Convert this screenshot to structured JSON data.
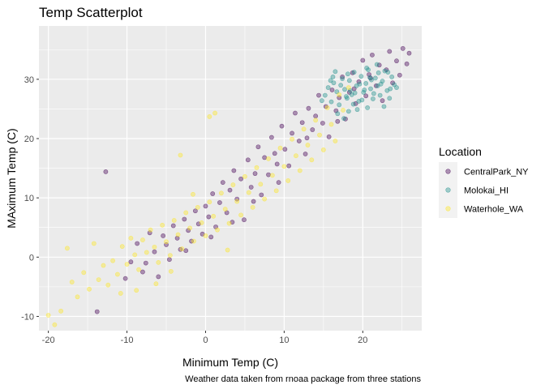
{
  "chart_data": {
    "type": "scatter",
    "title": "Temp Scatterplot",
    "xlabel": "Minimum Temp (C)",
    "ylabel": "MAximum Temp (C)",
    "caption": "Weather data taken from rnoaa package from three stations",
    "xlim": [
      -21.2,
      27.5
    ],
    "ylim": [
      -12.4,
      39.0
    ],
    "x_ticks": [
      -20,
      -10,
      0,
      10,
      20
    ],
    "x_tick_labels": [
      "-20",
      "-10",
      "0",
      "10",
      "20"
    ],
    "y_ticks": [
      -10,
      0,
      10,
      20,
      30
    ],
    "y_tick_labels": [
      "-10",
      "0",
      "10",
      "20",
      "30"
    ],
    "grid": true,
    "legend": {
      "title": "Location",
      "position": "right"
    },
    "series": [
      {
        "name": "CentralPark_NY",
        "color": "#440154",
        "points": [
          [
            -13.8,
            -9.2
          ],
          [
            -12.7,
            14.4
          ],
          [
            -10.2,
            -3.6
          ],
          [
            -9.5,
            -0.8
          ],
          [
            -8.7,
            2.3
          ],
          [
            -8,
            -2.5
          ],
          [
            -7.6,
            -1
          ],
          [
            -7.1,
            4.1
          ],
          [
            -6.5,
            0.9
          ],
          [
            -6,
            -3.3
          ],
          [
            -5.4,
            3.6
          ],
          [
            -5,
            2.1
          ],
          [
            -4.6,
            -0.4
          ],
          [
            -4.1,
            5.3
          ],
          [
            -3.6,
            3.2
          ],
          [
            -3.2,
            1.3
          ],
          [
            -2.7,
            6.4
          ],
          [
            -2.2,
            4.5
          ],
          [
            -1.8,
            2.7
          ],
          [
            -1.3,
            7.8
          ],
          [
            -0.9,
            5.6
          ],
          [
            -0.4,
            3.9
          ],
          [
            0,
            8.6
          ],
          [
            0.4,
            6.8
          ],
          [
            0.9,
            10.7
          ],
          [
            1.3,
            5.1
          ],
          [
            1.8,
            9.2
          ],
          [
            2.2,
            12.6
          ],
          [
            2.7,
            7.5
          ],
          [
            3.1,
            11.3
          ],
          [
            3.6,
            14.6
          ],
          [
            4,
            9.8
          ],
          [
            4.5,
            13.2
          ],
          [
            4.9,
            6.3
          ],
          [
            5.4,
            16.4
          ],
          [
            5.8,
            11.8
          ],
          [
            6.3,
            14.1
          ],
          [
            6.7,
            18.6
          ],
          [
            7.1,
            10.5
          ],
          [
            7.5,
            16.8
          ],
          [
            8,
            13.9
          ],
          [
            8.4,
            20.2
          ],
          [
            8.8,
            17.5
          ],
          [
            9.3,
            12.6
          ],
          [
            9.7,
            22.1
          ],
          [
            10.1,
            18.2
          ],
          [
            10.6,
            15.4
          ],
          [
            11,
            20.9
          ],
          [
            11.4,
            24.3
          ],
          [
            11.9,
            19.6
          ],
          [
            12.3,
            22.7
          ],
          [
            12.7,
            17.4
          ],
          [
            13.1,
            25.1
          ],
          [
            13.6,
            21.5
          ],
          [
            14,
            23.8
          ],
          [
            14.4,
            27.3
          ],
          [
            14.9,
            22.6
          ],
          [
            15.3,
            25.4
          ],
          [
            15.7,
            20.3
          ],
          [
            16.1,
            28.2
          ],
          [
            16.6,
            24.7
          ],
          [
            17,
            26.9
          ],
          [
            17.4,
            30.4
          ],
          [
            17.8,
            23.3
          ],
          [
            18.3,
            27.8
          ],
          [
            18.7,
            31.1
          ],
          [
            19.1,
            25.9
          ],
          [
            19.5,
            29.6
          ],
          [
            20,
            33.2
          ],
          [
            20.4,
            27.2
          ],
          [
            20.8,
            30.8
          ],
          [
            21.2,
            34.1
          ],
          [
            21.7,
            28.9
          ],
          [
            22.1,
            32.4
          ],
          [
            22.5,
            26.4
          ],
          [
            23,
            31.6
          ],
          [
            23.4,
            34.7
          ],
          [
            23.8,
            29.4
          ],
          [
            24.3,
            33.1
          ],
          [
            24.7,
            30.7
          ],
          [
            25.1,
            35.2
          ],
          [
            25.6,
            32.6
          ],
          [
            25.9,
            34.4
          ],
          [
            21,
            30.2
          ],
          [
            18.9,
            28.4
          ],
          [
            16.8,
            22.9
          ],
          [
            12.9,
            20.1
          ],
          [
            9.1,
            15.7
          ],
          [
            6.1,
            9.4
          ],
          [
            3.4,
            5.9
          ],
          [
            0.7,
            3.4
          ],
          [
            -2.5,
            1.1
          ]
        ]
      },
      {
        "name": "Molokai_HI",
        "color": "#21908C",
        "points": [
          [
            15.2,
            27.3
          ],
          [
            15.6,
            28.6
          ],
          [
            16,
            26.2
          ],
          [
            16.3,
            29.4
          ],
          [
            16.7,
            27.9
          ],
          [
            17,
            25.7
          ],
          [
            17.4,
            30.1
          ],
          [
            17.7,
            28.3
          ],
          [
            18,
            26.8
          ],
          [
            18.3,
            29.8
          ],
          [
            18.6,
            27.4
          ],
          [
            18.9,
            31.2
          ],
          [
            19.2,
            28.9
          ],
          [
            19.5,
            26.3
          ],
          [
            19.8,
            30.5
          ],
          [
            20.1,
            27.8
          ],
          [
            20.4,
            29.3
          ],
          [
            20.7,
            31.6
          ],
          [
            21,
            28.4
          ],
          [
            21.3,
            26.7
          ],
          [
            21.6,
            30.2
          ],
          [
            21.9,
            28.9
          ],
          [
            22.2,
            27.3
          ],
          [
            22.5,
            29.7
          ],
          [
            22.8,
            31.4
          ],
          [
            23.1,
            28.1
          ],
          [
            23.4,
            26.8
          ],
          [
            23.7,
            30.4
          ],
          [
            24,
            29.1
          ],
          [
            19.3,
            24.9
          ],
          [
            17.6,
            23.4
          ],
          [
            18.8,
            25.8
          ],
          [
            20.6,
            25.2
          ],
          [
            16.5,
            31.3
          ],
          [
            21.8,
            32.5
          ],
          [
            22.7,
            25.4
          ],
          [
            18.1,
            30.9
          ],
          [
            20.9,
            30.3
          ],
          [
            19.6,
            29.2
          ],
          [
            17.2,
            29
          ],
          [
            20.2,
            28.2
          ],
          [
            22.3,
            29.2
          ],
          [
            23.5,
            28.4
          ],
          [
            16.8,
            24.2
          ],
          [
            21.4,
            27.6
          ],
          [
            14.8,
            26.4
          ],
          [
            19,
            27.7
          ],
          [
            20.5,
            31.9
          ],
          [
            18.4,
            28.1
          ],
          [
            22,
            31.1
          ],
          [
            17.9,
            27.1
          ],
          [
            21.1,
            29.9
          ],
          [
            19.9,
            26.5
          ],
          [
            23.2,
            31.2
          ],
          [
            16.2,
            30.4
          ],
          [
            24.3,
            28.6
          ],
          [
            15.9,
            29.8
          ],
          [
            18.2,
            24.6
          ]
        ]
      },
      {
        "name": "Waterhole_WA",
        "color": "#FDE725",
        "points": [
          [
            -20,
            -9.8
          ],
          [
            -19.2,
            -11.4
          ],
          [
            -18.4,
            -9.1
          ],
          [
            -17.6,
            1.5
          ],
          [
            -17,
            -4.2
          ],
          [
            -16.3,
            -6.7
          ],
          [
            -15.5,
            -2.6
          ],
          [
            -14.8,
            -5.4
          ],
          [
            -14.2,
            2.3
          ],
          [
            -13.6,
            -3.8
          ],
          [
            -13,
            -1.4
          ],
          [
            -12.4,
            -4.7
          ],
          [
            -11.8,
            -0.6
          ],
          [
            -11.2,
            -2.9
          ],
          [
            -10.6,
            1.8
          ],
          [
            -10,
            -1.2
          ],
          [
            -9.5,
            3.2
          ],
          [
            -9,
            0.4
          ],
          [
            -8.5,
            -2.1
          ],
          [
            -8,
            2.9
          ],
          [
            -7.5,
            0.8
          ],
          [
            -7,
            4.6
          ],
          [
            -6.5,
            1.7
          ],
          [
            -6,
            -0.9
          ],
          [
            -5.5,
            5.4
          ],
          [
            -5,
            2.6
          ],
          [
            -4.5,
            0.3
          ],
          [
            -4,
            6.2
          ],
          [
            -3.5,
            3.8
          ],
          [
            -3,
            1.4
          ],
          [
            -2.5,
            7.5
          ],
          [
            -2,
            4.9
          ],
          [
            -1.5,
            2.7
          ],
          [
            -1,
            8.4
          ],
          [
            -0.5,
            5.8
          ],
          [
            0,
            3.6
          ],
          [
            0.5,
            9.3
          ],
          [
            1,
            6.9
          ],
          [
            1.5,
            4.6
          ],
          [
            2,
            10.8
          ],
          [
            2.5,
            8.1
          ],
          [
            3,
            5.7
          ],
          [
            3.5,
            12.2
          ],
          [
            4,
            9.4
          ],
          [
            4.5,
            7.1
          ],
          [
            5,
            13.6
          ],
          [
            5.5,
            10.9
          ],
          [
            6,
            8.4
          ],
          [
            6.5,
            15.1
          ],
          [
            7,
            12.3
          ],
          [
            7.5,
            9.8
          ],
          [
            8,
            16.6
          ],
          [
            8.5,
            13.8
          ],
          [
            9,
            11.2
          ],
          [
            9.5,
            18.4
          ],
          [
            10,
            15.3
          ],
          [
            10.5,
            12.9
          ],
          [
            11,
            19.9
          ],
          [
            11.5,
            17.1
          ],
          [
            12,
            14.6
          ],
          [
            12.5,
            21.6
          ],
          [
            13,
            18.9
          ],
          [
            13.5,
            16.4
          ],
          [
            14,
            23.1
          ],
          [
            14.5,
            20.6
          ],
          [
            15,
            18.1
          ],
          [
            15.5,
            25.2
          ],
          [
            16,
            22.4
          ],
          [
            16.5,
            19.6
          ],
          [
            17,
            27.4
          ],
          [
            17.5,
            24.8
          ],
          [
            18.2,
            28.6
          ],
          [
            -3.2,
            17.2
          ],
          [
            1.2,
            24.3
          ],
          [
            0.5,
            23.7
          ],
          [
            -6.3,
            -4.5
          ],
          [
            -8.8,
            -5.6
          ],
          [
            -4.4,
            -2.4
          ],
          [
            2.8,
            1.2
          ],
          [
            -1.6,
            10.6
          ],
          [
            -10.8,
            -6.1
          ]
        ]
      }
    ]
  }
}
